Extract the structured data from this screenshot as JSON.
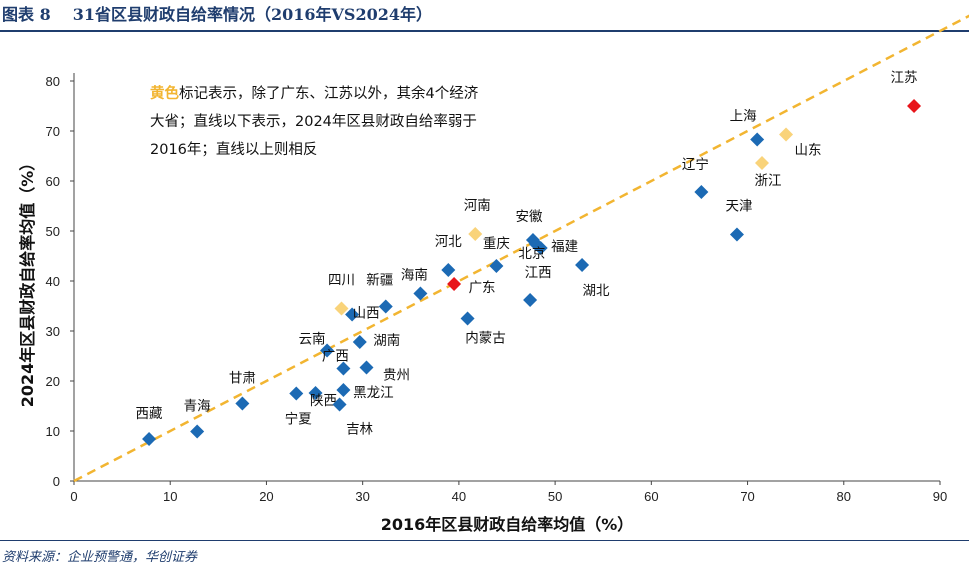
{
  "figure": {
    "number_label": "图表 8",
    "title": "31省区县财政自给率情况（2016年VS2024年）",
    "source": "资料来源：企业预警通，华创证券",
    "note_highlight": "黄色",
    "note_text": "标记表示，除了广东、江苏以外，其余4个经济大省；直线以下表示，2024年区县财政自给率弱于2016年；直线以上则相反"
  },
  "colors": {
    "blue": "#1c6ab4",
    "yellow": "#f9d37a",
    "red": "#e8151b",
    "line": "#f2b531",
    "title": "#1f3d6e"
  },
  "chart_data": {
    "type": "scatter",
    "xlabel": "2016年区县财政自给率均值（%）",
    "ylabel": "2024年区县财政自给率均值（%）",
    "xlim": [
      0,
      90
    ],
    "ylim": [
      0,
      80
    ],
    "xticks": [
      0,
      10,
      20,
      30,
      40,
      50,
      60,
      70,
      80,
      90
    ],
    "yticks": [
      0,
      10,
      20,
      30,
      40,
      50,
      60,
      70,
      80
    ],
    "reference_line": "y = x",
    "points": [
      {
        "label": "江苏",
        "x": 87.3,
        "y": 75.0,
        "group": "red"
      },
      {
        "label": "上海",
        "x": 71.0,
        "y": 68.3,
        "group": "blue"
      },
      {
        "label": "山东",
        "x": 74.0,
        "y": 69.3,
        "group": "yellow"
      },
      {
        "label": "浙江",
        "x": 71.5,
        "y": 63.6,
        "group": "yellow"
      },
      {
        "label": "辽宁",
        "x": 65.2,
        "y": 57.8,
        "group": "blue"
      },
      {
        "label": "天津",
        "x": 68.9,
        "y": 49.3,
        "group": "blue"
      },
      {
        "label": "河南",
        "x": 41.7,
        "y": 49.4,
        "group": "yellow"
      },
      {
        "label": "安徽",
        "x": 47.7,
        "y": 48.2,
        "group": "blue"
      },
      {
        "label": "福建",
        "x": 48.5,
        "y": 46.6,
        "group": "blue"
      },
      {
        "label": "北京",
        "x": 48.0,
        "y": 47.4,
        "group": "blue"
      },
      {
        "label": "湖北",
        "x": 52.8,
        "y": 43.2,
        "group": "blue"
      },
      {
        "label": "河北",
        "x": 38.9,
        "y": 42.2,
        "group": "blue"
      },
      {
        "label": "重庆",
        "x": 43.9,
        "y": 43.0,
        "group": "blue"
      },
      {
        "label": "江西",
        "x": 47.4,
        "y": 36.2,
        "group": "blue"
      },
      {
        "label": "广东",
        "x": 39.5,
        "y": 39.4,
        "group": "red"
      },
      {
        "label": "海南",
        "x": 36.0,
        "y": 37.5,
        "group": "blue"
      },
      {
        "label": "新疆",
        "x": 32.4,
        "y": 34.9,
        "group": "blue"
      },
      {
        "label": "四川",
        "x": 27.8,
        "y": 34.5,
        "group": "yellow"
      },
      {
        "label": "山西",
        "x": 28.9,
        "y": 33.3,
        "group": "blue"
      },
      {
        "label": "内蒙古",
        "x": 40.9,
        "y": 32.5,
        "group": "blue"
      },
      {
        "label": "湖南",
        "x": 29.7,
        "y": 27.8,
        "group": "blue"
      },
      {
        "label": "云南",
        "x": 26.3,
        "y": 26.1,
        "group": "blue"
      },
      {
        "label": "贵州",
        "x": 30.4,
        "y": 22.7,
        "group": "blue"
      },
      {
        "label": "广西",
        "x": 28.0,
        "y": 22.5,
        "group": "blue"
      },
      {
        "label": "黑龙江",
        "x": 28.0,
        "y": 18.2,
        "group": "blue"
      },
      {
        "label": "陕西",
        "x": 25.1,
        "y": 17.6,
        "group": "blue"
      },
      {
        "label": "宁夏",
        "x": 23.1,
        "y": 17.5,
        "group": "blue"
      },
      {
        "label": "吉林",
        "x": 27.6,
        "y": 15.3,
        "group": "blue"
      },
      {
        "label": "甘肃",
        "x": 17.5,
        "y": 15.5,
        "group": "blue"
      },
      {
        "label": "青海",
        "x": 12.8,
        "y": 9.9,
        "group": "blue"
      },
      {
        "label": "西藏",
        "x": 7.8,
        "y": 8.4,
        "group": "blue"
      }
    ]
  }
}
